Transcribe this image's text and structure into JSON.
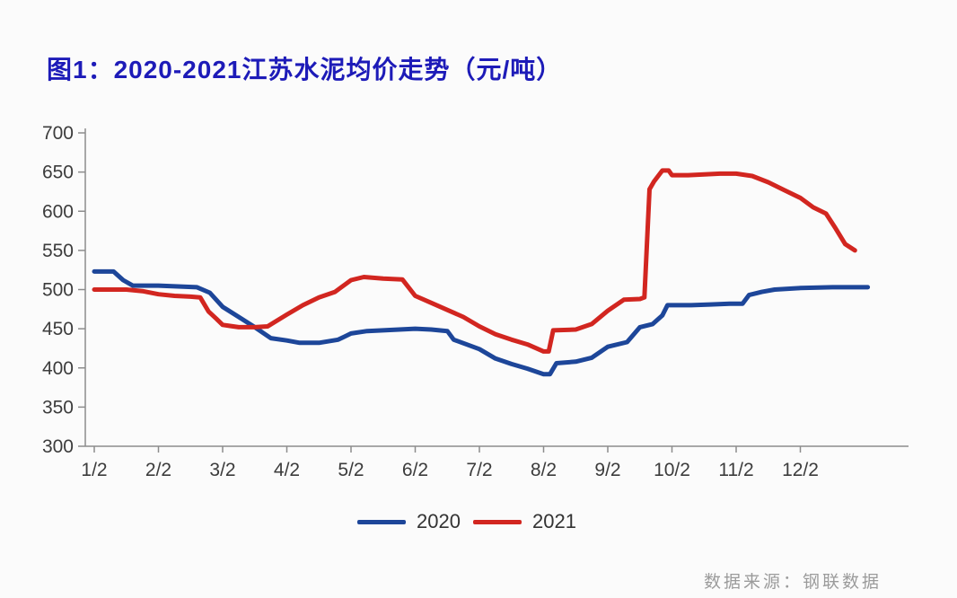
{
  "title": "图1：2020-2021江苏水泥均价走势（元/吨）",
  "source_note": "数据来源：钢联数据",
  "colors": {
    "title": "#1d1bb8",
    "line_2020": "#1d4699",
    "line_2021": "#d22620",
    "axis": "#8c8c8c",
    "tick_label": "#3c3c3c",
    "source_text": "#9b9b9b",
    "background": "#fbfbfb"
  },
  "legend": {
    "position": "bottom-center",
    "items": [
      {
        "label": "2020",
        "color": "#1d4699"
      },
      {
        "label": "2021",
        "color": "#d22620"
      }
    ]
  },
  "chart_data": {
    "type": "line",
    "title": "图1：2020-2021江苏水泥均价走势（元/吨）",
    "xlabel": "",
    "ylabel": "元/吨",
    "ylim": [
      300,
      700
    ],
    "yticks": [
      300,
      350,
      400,
      450,
      500,
      550,
      600,
      650,
      700
    ],
    "xticks": [
      "1/2",
      "2/2",
      "3/2",
      "4/2",
      "5/2",
      "6/2",
      "7/2",
      "8/2",
      "9/2",
      "10/2",
      "11/2",
      "12/2"
    ],
    "x_unit": "months since 1/2, weekly step data",
    "grid": false,
    "legend_position": "bottom-center",
    "series": [
      {
        "name": "2020",
        "color": "#1d4699",
        "points": [
          [
            0.0,
            523
          ],
          [
            0.3,
            523
          ],
          [
            0.45,
            512
          ],
          [
            0.6,
            505
          ],
          [
            1.0,
            505
          ],
          [
            1.3,
            504
          ],
          [
            1.6,
            503
          ],
          [
            1.8,
            496
          ],
          [
            2.0,
            478
          ],
          [
            2.25,
            465
          ],
          [
            2.5,
            452
          ],
          [
            2.75,
            438
          ],
          [
            3.0,
            435
          ],
          [
            3.2,
            432
          ],
          [
            3.5,
            432
          ],
          [
            3.8,
            436
          ],
          [
            4.0,
            444
          ],
          [
            4.25,
            447
          ],
          [
            4.5,
            448
          ],
          [
            4.75,
            449
          ],
          [
            5.0,
            450
          ],
          [
            5.25,
            449
          ],
          [
            5.5,
            447
          ],
          [
            5.6,
            436
          ],
          [
            6.0,
            424
          ],
          [
            6.25,
            412
          ],
          [
            6.5,
            405
          ],
          [
            6.75,
            399
          ],
          [
            7.0,
            392
          ],
          [
            7.1,
            392
          ],
          [
            7.2,
            406
          ],
          [
            7.5,
            408
          ],
          [
            7.75,
            413
          ],
          [
            8.0,
            427
          ],
          [
            8.3,
            433
          ],
          [
            8.5,
            452
          ],
          [
            8.7,
            456
          ],
          [
            8.85,
            467
          ],
          [
            8.93,
            480
          ],
          [
            9.3,
            480
          ],
          [
            9.6,
            481
          ],
          [
            9.9,
            482
          ],
          [
            10.1,
            482
          ],
          [
            10.2,
            493
          ],
          [
            10.4,
            497
          ],
          [
            10.6,
            500
          ],
          [
            11.0,
            502
          ],
          [
            11.5,
            503
          ],
          [
            12.05,
            503
          ]
        ]
      },
      {
        "name": "2021",
        "color": "#d22620",
        "points": [
          [
            0.0,
            500
          ],
          [
            0.25,
            500
          ],
          [
            0.5,
            500
          ],
          [
            0.75,
            498
          ],
          [
            1.0,
            494
          ],
          [
            1.25,
            492
          ],
          [
            1.5,
            491
          ],
          [
            1.65,
            490
          ],
          [
            1.78,
            472
          ],
          [
            1.9,
            463
          ],
          [
            2.0,
            455
          ],
          [
            2.25,
            452
          ],
          [
            2.5,
            452
          ],
          [
            2.7,
            453
          ],
          [
            2.8,
            458
          ],
          [
            3.0,
            468
          ],
          [
            3.25,
            480
          ],
          [
            3.5,
            490
          ],
          [
            3.75,
            497
          ],
          [
            4.0,
            512
          ],
          [
            4.2,
            516
          ],
          [
            4.5,
            514
          ],
          [
            4.8,
            513
          ],
          [
            5.0,
            492
          ],
          [
            5.25,
            483
          ],
          [
            5.5,
            474
          ],
          [
            5.75,
            465
          ],
          [
            6.0,
            453
          ],
          [
            6.25,
            443
          ],
          [
            6.5,
            436
          ],
          [
            6.75,
            430
          ],
          [
            7.0,
            421
          ],
          [
            7.08,
            421
          ],
          [
            7.15,
            448
          ],
          [
            7.5,
            449
          ],
          [
            7.75,
            456
          ],
          [
            8.0,
            473
          ],
          [
            8.25,
            487
          ],
          [
            8.5,
            488
          ],
          [
            8.57,
            490
          ],
          [
            8.65,
            628
          ],
          [
            8.72,
            638
          ],
          [
            8.85,
            652
          ],
          [
            8.95,
            652
          ],
          [
            9.0,
            646
          ],
          [
            9.25,
            646
          ],
          [
            9.5,
            647
          ],
          [
            9.75,
            648
          ],
          [
            10.0,
            648
          ],
          [
            10.25,
            645
          ],
          [
            10.5,
            637
          ],
          [
            10.75,
            627
          ],
          [
            11.0,
            617
          ],
          [
            11.2,
            605
          ],
          [
            11.4,
            597
          ],
          [
            11.55,
            578
          ],
          [
            11.7,
            558
          ],
          [
            11.85,
            550
          ]
        ]
      }
    ]
  }
}
